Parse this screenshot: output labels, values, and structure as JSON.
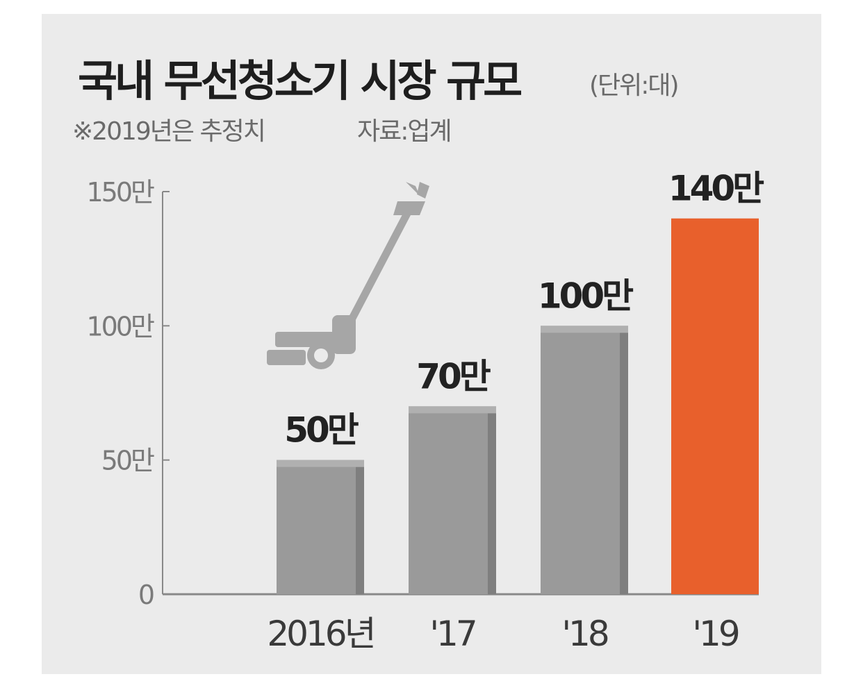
{
  "header": {
    "title": "국내 무선청소기 시장 규모",
    "unit": "(단위:대)",
    "note": "※2019년은 추정치",
    "source": "자료:업계"
  },
  "chart_data": {
    "type": "bar",
    "title": "국내 무선청소기 시장 규모",
    "xlabel": "",
    "ylabel": "",
    "categories": [
      "2016년",
      "'17",
      "'18",
      "'19"
    ],
    "values": [
      50,
      70,
      100,
      140
    ],
    "value_labels": [
      "50만",
      "70만",
      "100만",
      "140만"
    ],
    "ylim": [
      0,
      150
    ],
    "yticks": [
      0,
      50,
      100,
      150
    ],
    "ytick_labels": [
      "0",
      "50만",
      "100만",
      "150만"
    ],
    "grid": false,
    "bar_colors": [
      "#9a9a9a",
      "#9a9a9a",
      "#9a9a9a",
      "#e8602c"
    ],
    "bar_side_colors": [
      "#7f7f7f",
      "#7f7f7f",
      "#7f7f7f",
      "#e8602c"
    ],
    "decoration": "vacuum-cleaner-icon"
  },
  "colors": {
    "background": "#ebebeb",
    "axis": "#888888",
    "bar": "#9a9a9a",
    "highlight": "#e8602c"
  }
}
